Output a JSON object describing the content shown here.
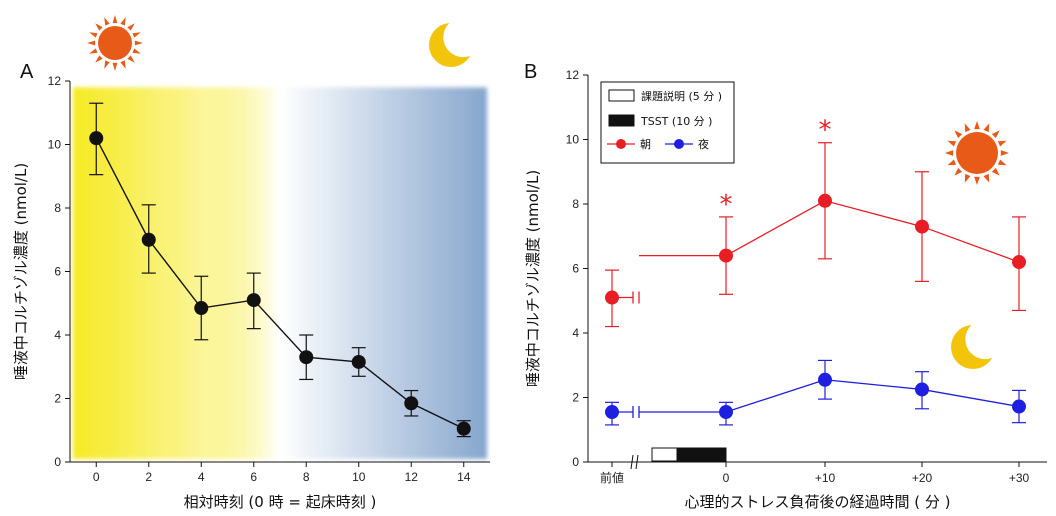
{
  "colors": {
    "black": "#111111",
    "morning": "#e81e25",
    "night": "#1f1fe0",
    "sun": "#e85a17",
    "moon": "#f2c40c",
    "gradient_day": "#f6ea22",
    "gradient_night": "#86a6cd"
  },
  "icons": {
    "sun_a": "sun-icon",
    "moon_a": "moon-icon",
    "sun_b": "sun-icon",
    "moon_b": "moon-icon"
  },
  "chart_data": [
    {
      "type": "line",
      "panel_label": "A",
      "xlabel": "相対時刻 (0 時 = 起床時刻 )",
      "ylabel": "唾液中コルチゾル濃度 (nmol/L)",
      "xlim": [
        -1,
        15
      ],
      "ylim": [
        0,
        12
      ],
      "xticks": [
        0,
        2,
        4,
        6,
        8,
        10,
        12,
        14
      ],
      "yticks": [
        0,
        2,
        4,
        6,
        8,
        10,
        12
      ],
      "grid": false,
      "background": "horizontal gradient yellow to blue",
      "series": [
        {
          "color": "#111111",
          "x": [
            0,
            2,
            4,
            6,
            8,
            10,
            12,
            14
          ],
          "y": [
            10.2,
            7.0,
            4.85,
            5.1,
            3.3,
            3.15,
            1.85,
            1.05
          ],
          "err_upper": [
            1.1,
            1.1,
            1.0,
            0.85,
            0.7,
            0.45,
            0.4,
            0.25
          ],
          "err_lower": [
            1.15,
            1.05,
            1.0,
            0.9,
            0.7,
            0.45,
            0.4,
            0.25
          ]
        }
      ]
    },
    {
      "type": "line",
      "panel_label": "B",
      "xlabel": "心理的ストレス負荷後の経過時間 ( 分 )",
      "ylabel": "唾液中コルチゾル濃度 (nmol/L)",
      "ylim": [
        0,
        12
      ],
      "yticks": [
        0,
        2,
        4,
        6,
        8,
        10,
        12
      ],
      "categories": [
        "前値",
        "0",
        "+10",
        "+20",
        "+30"
      ],
      "grid": false,
      "legend_position": "top-left",
      "legend": [
        {
          "kind": "box-open",
          "label": "課題説明 (5 分 )"
        },
        {
          "kind": "box-filled",
          "label": "TSST (10 分 )"
        }
      ],
      "series": [
        {
          "name": "朝",
          "color": "#e81e25",
          "values": [
            5.1,
            6.4,
            8.1,
            7.3,
            6.2
          ],
          "err_upper": [
            0.85,
            1.2,
            1.8,
            1.7,
            1.4
          ],
          "err_lower": [
            0.9,
            1.2,
            1.8,
            1.7,
            1.5
          ]
        },
        {
          "name": "夜",
          "color": "#1f1fe0",
          "values": [
            1.55,
            1.55,
            2.55,
            2.25,
            1.72
          ],
          "err_upper": [
            0.3,
            0.3,
            0.6,
            0.55,
            0.5
          ],
          "err_lower": [
            0.4,
            0.4,
            0.6,
            0.6,
            0.5
          ]
        }
      ],
      "significance": [
        {
          "category": "0",
          "label": "*"
        },
        {
          "category": "+10",
          "label": "*"
        }
      ],
      "task_bar": {
        "open_label": "課題説明",
        "filled_label": "TSST"
      }
    }
  ]
}
